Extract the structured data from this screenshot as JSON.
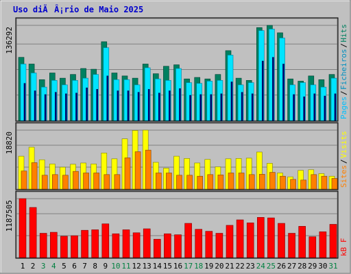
{
  "title": "Uso diÃÂ¡rio de Maio 2025",
  "colors": {
    "background": "#c0c0c0",
    "hits": "#009a6e",
    "files": "#00e4ff",
    "pages": "#000080",
    "visits": "#ffff00",
    "sites": "#ff8000",
    "kbytes": "#ff0000",
    "title": "#0000cc",
    "weekend": "#008040"
  },
  "chart_data": [
    {
      "type": "bar",
      "panel": "hits-files-pages",
      "ymax_label": "136292",
      "legend": [
        {
          "name": "Pages",
          "color": "#00c0ff"
        },
        {
          "name": "Ficheiros",
          "color": "#0090c0"
        },
        {
          "name": "Hits",
          "color": "#008060"
        }
      ],
      "categories": [
        "1",
        "2",
        "3",
        "4",
        "5",
        "6",
        "7",
        "8",
        "9",
        "10",
        "11",
        "12",
        "13",
        "14",
        "15",
        "16",
        "17",
        "18",
        "19",
        "20",
        "21",
        "22",
        "23",
        "24",
        "25",
        "26",
        "27",
        "28",
        "29",
        "30",
        "31"
      ],
      "series": [
        {
          "name": "Hits",
          "values": [
            85000,
            76000,
            55000,
            64000,
            57000,
            62000,
            70000,
            69000,
            106000,
            64000,
            60000,
            57000,
            76000,
            63000,
            73000,
            75000,
            56000,
            58000,
            56000,
            62000,
            94000,
            57000,
            54000,
            125000,
            128000,
            118000,
            56000,
            53000,
            60000,
            55000,
            62000
          ]
        },
        {
          "name": "Ficheiros",
          "values": [
            76000,
            64000,
            45000,
            54000,
            48000,
            54000,
            57000,
            62000,
            98000,
            55000,
            55000,
            48000,
            71000,
            56000,
            54000,
            70000,
            51000,
            50000,
            53000,
            54000,
            88000,
            48000,
            51000,
            121000,
            123000,
            111000,
            48000,
            51000,
            48000,
            45000,
            57000
          ]
        },
        {
          "name": "Pages",
          "values": [
            50000,
            40000,
            35000,
            38000,
            36000,
            37000,
            44000,
            42000,
            60000,
            40000,
            40000,
            38000,
            42000,
            37000,
            40000,
            43000,
            34000,
            35000,
            35000,
            36000,
            52000,
            38000,
            36000,
            80000,
            85000,
            76000,
            35000,
            32000,
            36000,
            33000,
            36000
          ]
        }
      ]
    },
    {
      "type": "bar",
      "panel": "visits-sites",
      "ymax_label": "18820",
      "legend": [
        {
          "name": "Sites",
          "color": "#ff8000"
        },
        {
          "name": "Visits",
          "color": "#ffff00"
        }
      ],
      "categories": [
        "1",
        "2",
        "3",
        "4",
        "5",
        "6",
        "7",
        "8",
        "9",
        "10",
        "11",
        "12",
        "13",
        "14",
        "15",
        "16",
        "17",
        "18",
        "19",
        "20",
        "21",
        "22",
        "23",
        "24",
        "25",
        "26",
        "27",
        "28",
        "29",
        "30",
        "31"
      ],
      "series": [
        {
          "name": "Visits",
          "values": [
            10200,
            13000,
            9100,
            7800,
            6800,
            7700,
            8100,
            7800,
            11200,
            9400,
            15600,
            18200,
            18300,
            8300,
            6500,
            10200,
            9500,
            8100,
            9200,
            6900,
            9400,
            9500,
            9600,
            11500,
            8000,
            5000,
            3800,
            5800,
            6000,
            4800,
            4000
          ]
        },
        {
          "name": "Sites",
          "values": [
            5600,
            8200,
            4300,
            4500,
            4300,
            5500,
            5000,
            5000,
            4500,
            4500,
            9700,
            11600,
            12100,
            5000,
            5000,
            4300,
            4300,
            4000,
            4500,
            4400,
            5000,
            5000,
            4500,
            4600,
            5200,
            4000,
            3000,
            2800,
            4500,
            4000,
            3300
          ]
        }
      ]
    },
    {
      "type": "bar",
      "panel": "kbytes",
      "ymax_label": "1187505",
      "legend": [
        {
          "name": "kB F",
          "color": "#ff0000"
        }
      ],
      "categories": [
        "1",
        "2",
        "3",
        "4",
        "5",
        "6",
        "7",
        "8",
        "9",
        "10",
        "11",
        "12",
        "13",
        "14",
        "15",
        "16",
        "17",
        "18",
        "19",
        "20",
        "21",
        "22",
        "23",
        "24",
        "25",
        "26",
        "27",
        "28",
        "29",
        "30",
        "31"
      ],
      "series": [
        {
          "name": "kB F",
          "values": [
            1187505,
            1010000,
            490000,
            510000,
            430000,
            440000,
            550000,
            560000,
            680000,
            480000,
            560000,
            500000,
            580000,
            370000,
            480000,
            460000,
            690000,
            570000,
            530000,
            490000,
            650000,
            760000,
            700000,
            810000,
            800000,
            690000,
            490000,
            630000,
            420000,
            520000,
            670000
          ]
        }
      ]
    }
  ]
}
